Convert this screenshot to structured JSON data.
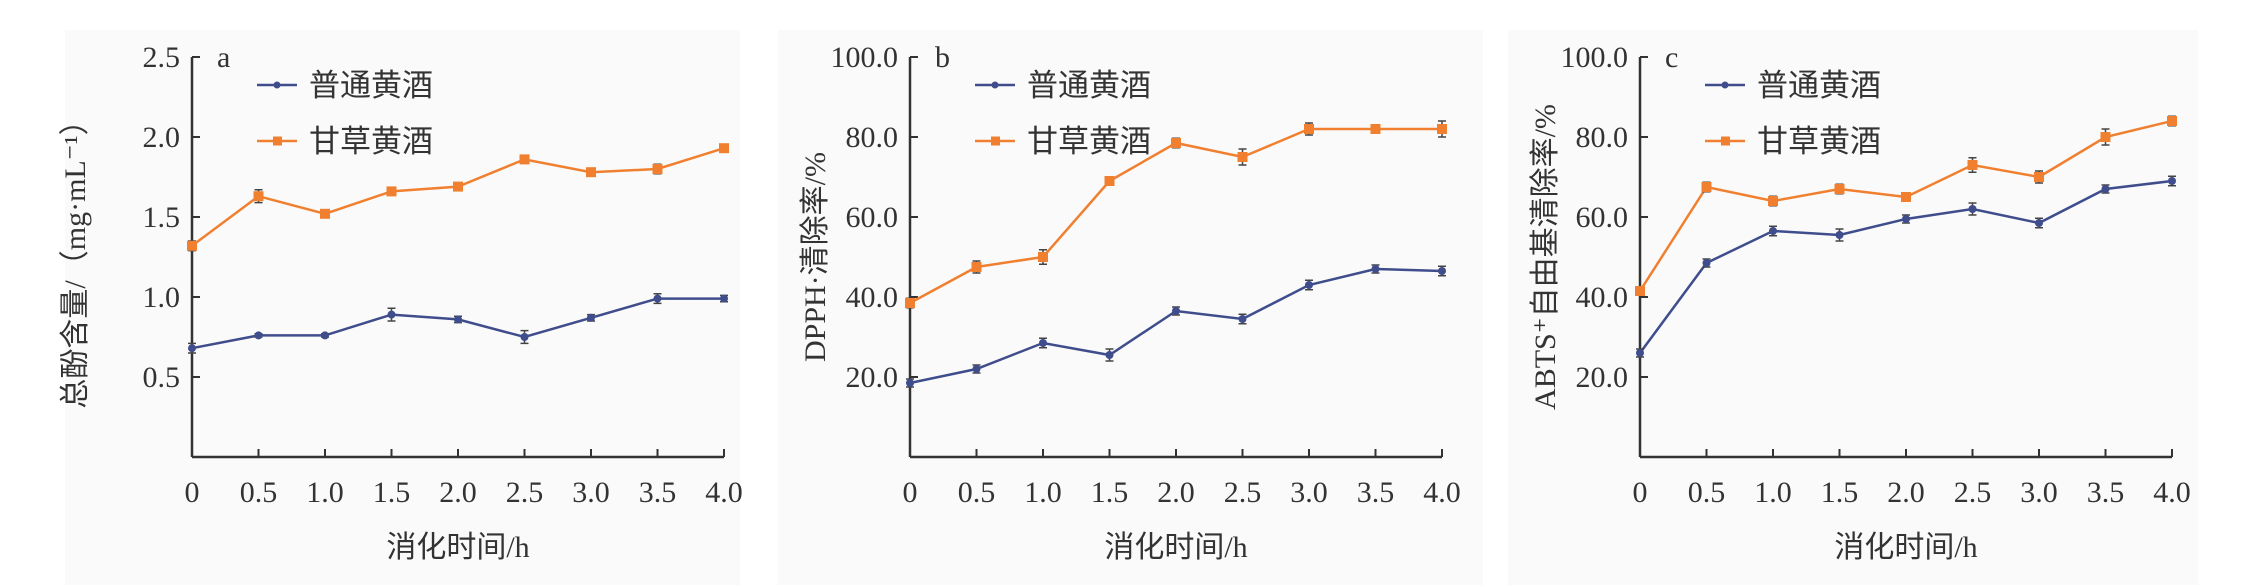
{
  "colors": {
    "plain": "#3f4d8c",
    "licorice": "#f08030",
    "axis": "#333333",
    "panel": "#fafafa"
  },
  "chart_data": [
    {
      "type": "line",
      "panel_label": "a",
      "x": [
        "0",
        "0.5",
        "1.0",
        "1.5",
        "2.0",
        "2.5",
        "3.0",
        "3.5",
        "4.0"
      ],
      "xlabel": "消化时间/h",
      "ylabel": "总酚含量/（mg·mL⁻¹）",
      "ylim": [
        0,
        2.5
      ],
      "yticks": [
        "0.5",
        "1.0",
        "1.5",
        "2.0",
        "2.5"
      ],
      "ytick_values": [
        0.5,
        1.0,
        1.5,
        2.0,
        2.5
      ],
      "legend_position": "top",
      "series": [
        {
          "name": "普通黄酒",
          "values": [
            0.68,
            0.76,
            0.76,
            0.89,
            0.86,
            0.75,
            0.87,
            0.99,
            0.99
          ],
          "errors": [
            0.03,
            0.01,
            0.01,
            0.04,
            0.02,
            0.04,
            0.02,
            0.03,
            0.02
          ]
        },
        {
          "name": "甘草黄酒",
          "values": [
            1.32,
            1.63,
            1.52,
            1.66,
            1.69,
            1.86,
            1.78,
            1.8,
            1.93
          ],
          "errors": [
            0.03,
            0.04,
            0.02,
            0.02,
            0.02,
            0.02,
            0.02,
            0.03,
            0.02
          ]
        }
      ]
    },
    {
      "type": "line",
      "panel_label": "b",
      "x": [
        "0",
        "0.5",
        "1.0",
        "1.5",
        "2.0",
        "2.5",
        "3.0",
        "3.5",
        "4.0"
      ],
      "xlabel": "消化时间/h",
      "ylabel": "DPPH·清除率/%",
      "ylim": [
        0,
        100
      ],
      "yticks": [
        "20.0",
        "40.0",
        "60.0",
        "80.0",
        "100.0"
      ],
      "ytick_values": [
        20,
        40,
        60,
        80,
        100
      ],
      "legend_position": "top",
      "series": [
        {
          "name": "普通黄酒",
          "values": [
            18.5,
            22.0,
            28.5,
            25.5,
            36.5,
            34.5,
            43.0,
            47.0,
            46.5
          ],
          "errors": [
            1.0,
            1.0,
            1.2,
            1.5,
            1.0,
            1.2,
            1.2,
            1.0,
            1.2
          ]
        },
        {
          "name": "甘草黄酒",
          "values": [
            38.5,
            47.5,
            50.0,
            69.0,
            78.5,
            75.0,
            82.0,
            82.0,
            82.0
          ],
          "errors": [
            1.2,
            1.5,
            1.8,
            0.8,
            1.2,
            2.0,
            1.5,
            1.0,
            2.0
          ]
        }
      ]
    },
    {
      "type": "line",
      "panel_label": "c",
      "x": [
        "0",
        "0.5",
        "1.0",
        "1.5",
        "2.0",
        "2.5",
        "3.0",
        "3.5",
        "4.0"
      ],
      "xlabel": "消化时间/h",
      "ylabel": "ABTS⁺自由基清除率/%",
      "ylim": [
        0,
        100
      ],
      "yticks": [
        "20.0",
        "40.0",
        "60.0",
        "80.0",
        "100.0"
      ],
      "ytick_values": [
        20,
        40,
        60,
        80,
        100
      ],
      "legend_position": "top",
      "series": [
        {
          "name": "普通黄酒",
          "values": [
            26.0,
            48.5,
            56.5,
            55.5,
            59.5,
            62.0,
            58.5,
            67.0,
            69.0
          ],
          "errors": [
            1.0,
            1.0,
            1.2,
            1.5,
            1.0,
            1.5,
            1.2,
            1.0,
            1.2
          ]
        },
        {
          "name": "甘草黄酒",
          "values": [
            41.5,
            67.5,
            64.0,
            67.0,
            65.0,
            73.0,
            70.0,
            80.0,
            84.0
          ],
          "errors": [
            1.0,
            1.2,
            1.2,
            1.2,
            1.0,
            1.8,
            1.5,
            2.0,
            1.2
          ]
        }
      ]
    }
  ]
}
